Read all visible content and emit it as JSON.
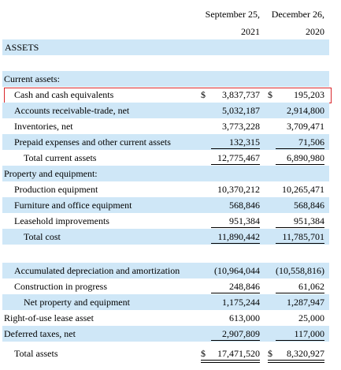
{
  "header": {
    "columns": [
      [
        "September 25,",
        "2021"
      ],
      [
        "December 26,",
        "2020"
      ]
    ]
  },
  "section": "ASSETS",
  "rows": [
    {
      "label": "Current assets:"
    },
    {
      "label": "Cash and cash equivalents",
      "symbols": [
        "$",
        "$"
      ],
      "values": [
        "3,837,737",
        "195,203"
      ]
    },
    {
      "label": "Accounts receivable-trade, net",
      "values": [
        "5,032,187",
        "2,914,800"
      ]
    },
    {
      "label": "Inventories, net",
      "values": [
        "3,773,228",
        "3,709,471"
      ]
    },
    {
      "label": "Prepaid expenses and other current assets",
      "values": [
        "132,315",
        "71,506"
      ]
    },
    {
      "label": "Total current assets",
      "values": [
        "12,775,467",
        "6,890,980"
      ]
    },
    {
      "label": "Property and equipment:"
    },
    {
      "label": "Production equipment",
      "values": [
        "10,370,212",
        "10,265,471"
      ]
    },
    {
      "label": "Furniture and office equipment",
      "values": [
        "568,846",
        "568,846"
      ]
    },
    {
      "label": "Leasehold improvements",
      "values": [
        "951,384",
        "951,384"
      ]
    },
    {
      "label": "Total cost",
      "values": [
        "11,890,442",
        "11,785,701"
      ]
    },
    {
      "label": "Accumulated depreciation and amortization",
      "values": [
        "(10,964,044",
        "(10,558,816)"
      ]
    },
    {
      "label": "Construction in progress",
      "values": [
        "248,846",
        "61,062"
      ]
    },
    {
      "label": "Net property and equipment",
      "values": [
        "1,175,244",
        "1,287,947"
      ]
    },
    {
      "label": "Right-of-use lease asset",
      "values": [
        "613,000",
        "25,000"
      ]
    },
    {
      "label": "Deferred taxes, net",
      "values": [
        "2,907,809",
        "117,000"
      ]
    },
    {
      "label": "Total assets",
      "symbols": [
        "$",
        "$"
      ],
      "values": [
        "17,471,520",
        "8,320,927"
      ]
    }
  ]
}
